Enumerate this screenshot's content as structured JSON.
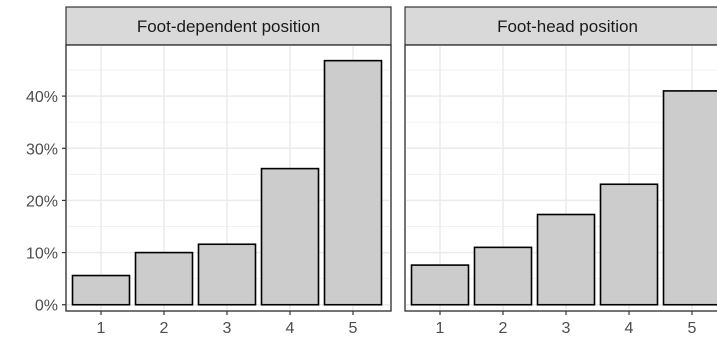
{
  "chart_data": {
    "type": "bar",
    "y_tick_labels": [
      "0%",
      "10%",
      "20%",
      "30%",
      "40%"
    ],
    "y_ticks": [
      0,
      10,
      20,
      30,
      40
    ],
    "ylim": [
      -1.2,
      49.8
    ],
    "categories": [
      "1",
      "2",
      "3",
      "4",
      "5"
    ],
    "grid": true,
    "bar_fill": "#cccccc",
    "bar_stroke": "#000000",
    "strip_fill": "#d9d9d9",
    "facets": [
      {
        "title": "Foot-dependent position",
        "values": [
          5.6,
          10.0,
          11.6,
          26.1,
          46.8
        ]
      },
      {
        "title": "Foot-head position",
        "values": [
          7.6,
          11.0,
          17.3,
          23.1,
          41.0
        ]
      }
    ]
  }
}
